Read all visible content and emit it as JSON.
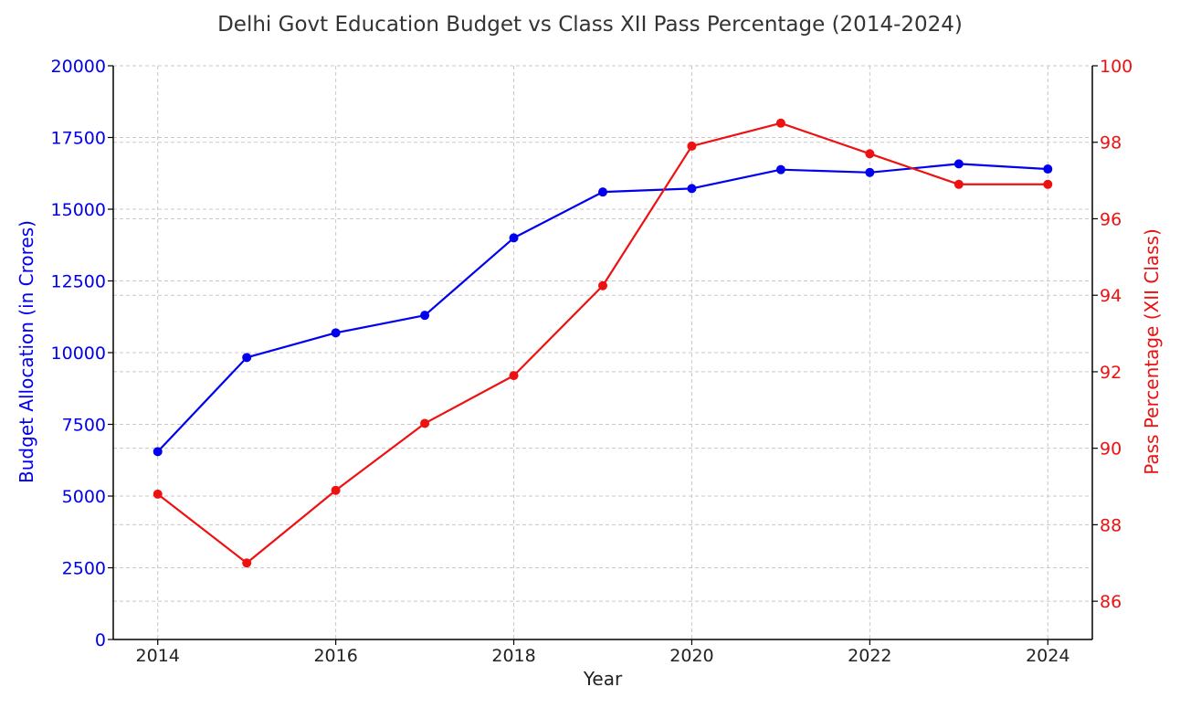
{
  "chart_data": {
    "type": "line",
    "title": "Delhi Govt Education Budget vs Class XII Pass Percentage (2014-2024)",
    "xlabel": "Year",
    "ylabel_left": "Budget Allocation (in Crores)",
    "ylabel_right": "Pass Percentage (XII Class)",
    "x": [
      2014,
      2015,
      2016,
      2017,
      2018,
      2019,
      2020,
      2021,
      2022,
      2023,
      2024
    ],
    "x_ticks": [
      "2014",
      "2016",
      "2018",
      "2020",
      "2022",
      "2024"
    ],
    "xlim": [
      2013.5,
      2024.5
    ],
    "y_left_ticks": [
      "0",
      "2500",
      "5000",
      "7500",
      "10000",
      "12500",
      "15000",
      "17500",
      "20000"
    ],
    "ylim_left": [
      0,
      20000
    ],
    "y_right_ticks": [
      "86",
      "88",
      "90",
      "92",
      "94",
      "96",
      "98",
      "100"
    ],
    "ylim_right": [
      85,
      100
    ],
    "grid": true,
    "series": [
      {
        "axis": "left",
        "color": "#0000ee",
        "values": [
          6550,
          9830,
          10690,
          11300,
          14000,
          15600,
          15720,
          16380,
          16280,
          16580,
          16400
        ]
      },
      {
        "axis": "right",
        "color": "#ee1111",
        "values": [
          88.8,
          87.0,
          88.9,
          90.65,
          91.9,
          94.25,
          97.9,
          98.5,
          97.7,
          96.9,
          96.9
        ]
      }
    ]
  }
}
